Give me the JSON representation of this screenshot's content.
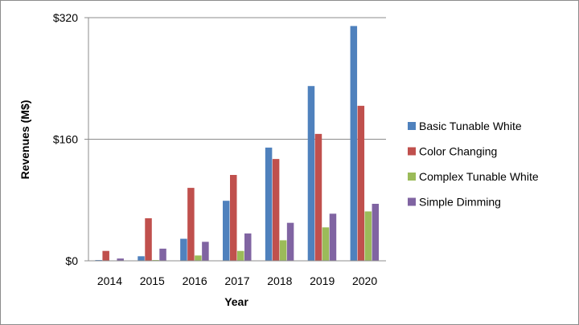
{
  "chart_data": {
    "type": "bar",
    "title": "",
    "xlabel": "Year",
    "ylabel": "Revenues (M$)",
    "ylim": [
      0,
      320
    ],
    "yticks": [
      0,
      160,
      320
    ],
    "ytick_labels": [
      "$0",
      "$160",
      "$320"
    ],
    "categories": [
      "2014",
      "2015",
      "2016",
      "2017",
      "2018",
      "2019",
      "2020"
    ],
    "grid": true,
    "legend_position": "right",
    "series": [
      {
        "name": "Basic Tunable White",
        "color": "#4F81BD",
        "values": [
          1,
          6,
          29,
          79,
          149,
          230,
          309
        ]
      },
      {
        "name": "Color Changing",
        "color": "#C0504D",
        "values": [
          13,
          56,
          96,
          113,
          134,
          167,
          204
        ]
      },
      {
        "name": "Complex Tunable White",
        "color": "#9BBB59",
        "values": [
          0,
          1,
          7,
          13,
          27,
          44,
          65
        ]
      },
      {
        "name": "Simple Dimming",
        "color": "#8064A2",
        "values": [
          3,
          16,
          25,
          36,
          50,
          62,
          75
        ]
      }
    ]
  }
}
